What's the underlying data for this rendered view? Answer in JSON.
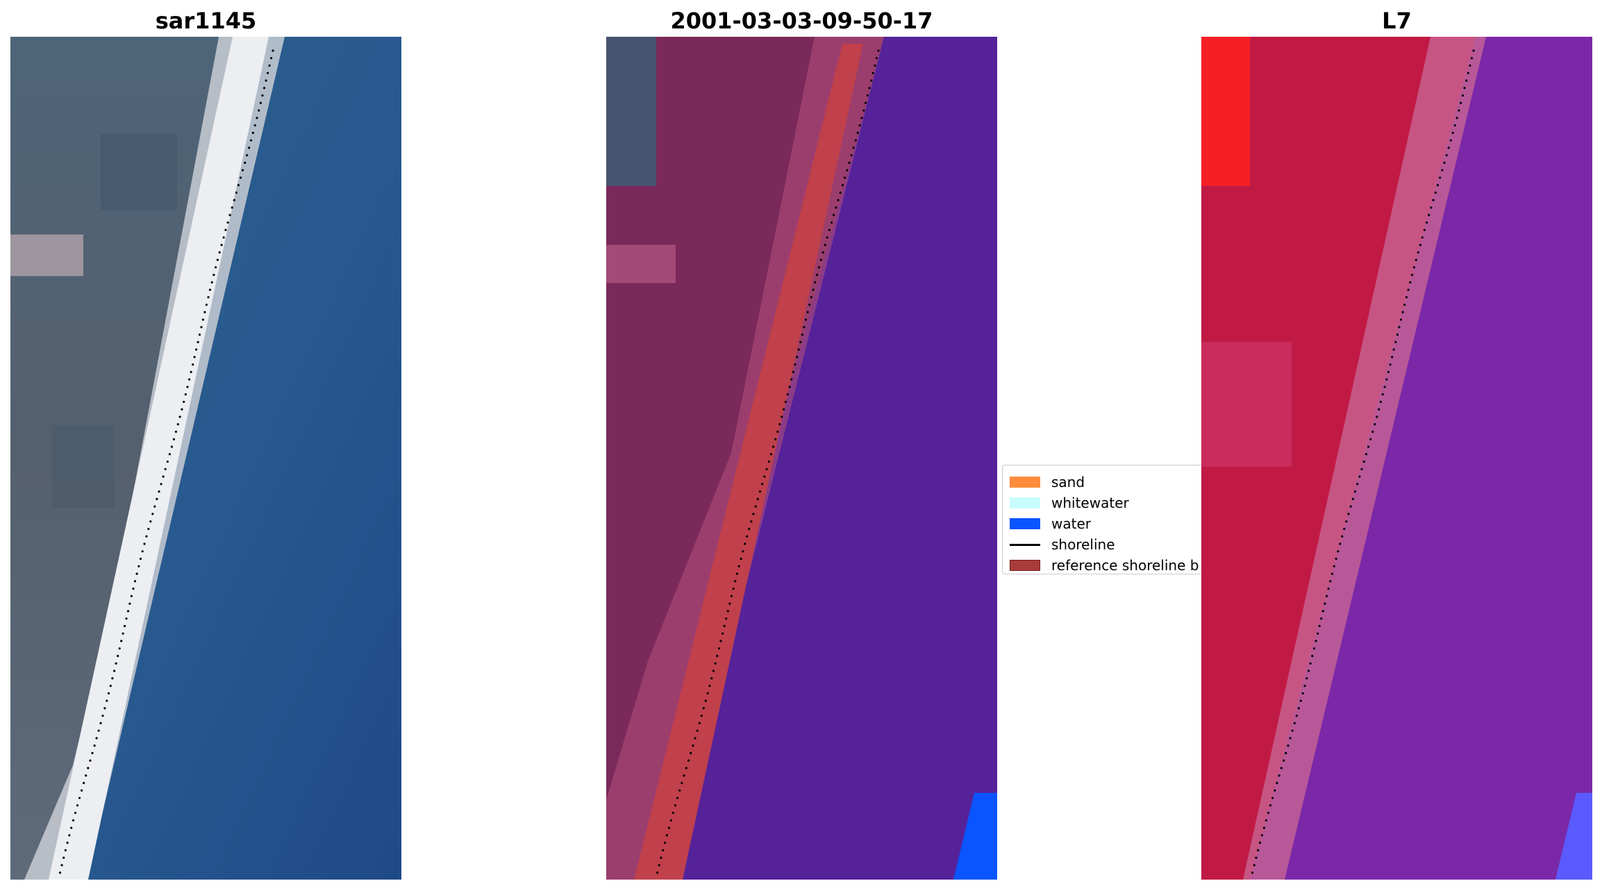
{
  "panels": {
    "left": {
      "title": "sar1145"
    },
    "middle": {
      "title": "2001-03-03-09-50-17"
    },
    "right": {
      "title": "L7"
    }
  },
  "legend": {
    "items": [
      {
        "label": "sand",
        "color": "#ff8c3c",
        "kind": "patch"
      },
      {
        "label": "whitewater",
        "color": "#c8fcfc",
        "kind": "patch"
      },
      {
        "label": "water",
        "color": "#0a55ff",
        "kind": "patch"
      },
      {
        "label": "shoreline",
        "color": "#000000",
        "kind": "line"
      },
      {
        "label": "reference shoreline b",
        "color": "#a83c3c",
        "kind": "patch"
      }
    ]
  },
  "colors": {
    "rgb_land": "#5a6878",
    "rgb_beach": "#e8e6ea",
    "rgb_sea": "#27528a",
    "class_land": "#7a2a5a",
    "class_buffer": "#c0404c",
    "class_water": "#55229a",
    "ndwi_land": "#c8143c",
    "ndwi_water": "#7a28a8"
  }
}
